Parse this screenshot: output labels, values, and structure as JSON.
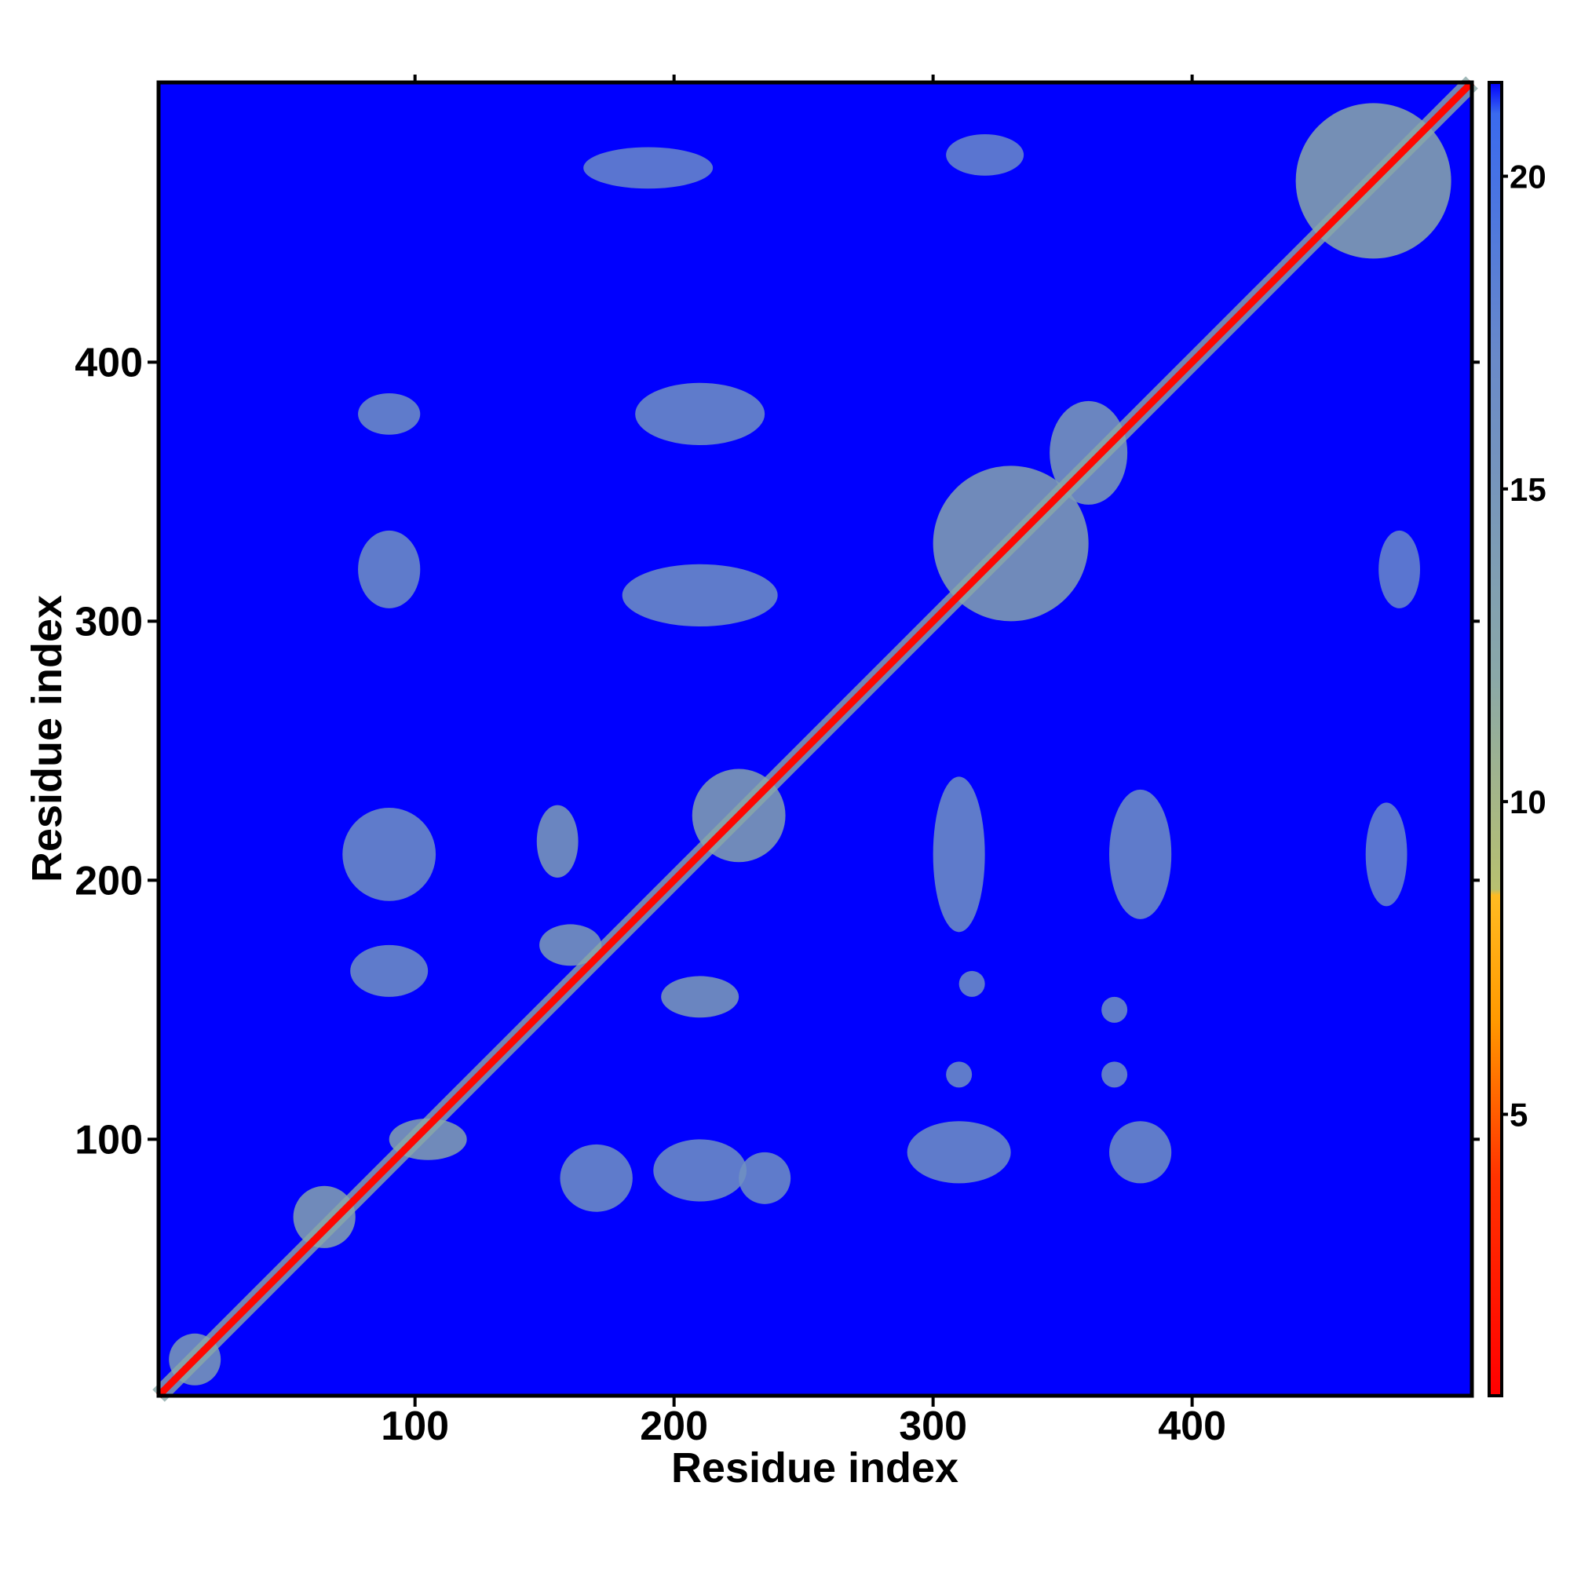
{
  "chart_data": {
    "type": "heatmap",
    "title": "",
    "xlabel": "Residue index",
    "ylabel": "Residue index",
    "xlim": [
      1,
      508
    ],
    "ylim": [
      1,
      508
    ],
    "x_ticks": [
      100,
      200,
      300,
      400
    ],
    "y_ticks": [
      100,
      200,
      300,
      400
    ],
    "colorbar": {
      "ticks": [
        5,
        10,
        15,
        20
      ],
      "range": [
        0.5,
        21.5
      ],
      "stops": [
        {
          "value": 0.5,
          "color": "#ff0000"
        },
        {
          "value": 4.0,
          "color": "#ff3300"
        },
        {
          "value": 6.5,
          "color": "#ff9900"
        },
        {
          "value": 8.5,
          "color": "#ffbb22"
        },
        {
          "value": 8.6,
          "color": "#b8c070"
        },
        {
          "value": 12.0,
          "color": "#8aa8a8"
        },
        {
          "value": 17.0,
          "color": "#6a8ac8"
        },
        {
          "value": 21.0,
          "color": "#3a6aee"
        },
        {
          "value": 21.5,
          "color": "#0000ff"
        }
      ]
    },
    "background_value": 21.5,
    "background_color": "#0000ff",
    "diagonal_value": 1.0,
    "contact_clusters": [
      {
        "x": 15,
        "y": 15,
        "rx": 10,
        "ry": 10,
        "value": 14
      },
      {
        "x": 65,
        "y": 70,
        "rx": 12,
        "ry": 12,
        "value": 13
      },
      {
        "x": 105,
        "y": 100,
        "rx": 15,
        "ry": 8,
        "value": 13
      },
      {
        "x": 170,
        "y": 85,
        "rx": 14,
        "ry": 13,
        "value": 16
      },
      {
        "x": 210,
        "y": 88,
        "rx": 18,
        "ry": 12,
        "value": 16
      },
      {
        "x": 235,
        "y": 85,
        "rx": 10,
        "ry": 10,
        "value": 16
      },
      {
        "x": 90,
        "y": 165,
        "rx": 15,
        "ry": 10,
        "value": 16
      },
      {
        "x": 90,
        "y": 210,
        "rx": 18,
        "ry": 18,
        "value": 16
      },
      {
        "x": 155,
        "y": 215,
        "rx": 8,
        "ry": 14,
        "value": 14
      },
      {
        "x": 210,
        "y": 155,
        "rx": 15,
        "ry": 8,
        "value": 14
      },
      {
        "x": 160,
        "y": 175,
        "rx": 12,
        "ry": 8,
        "value": 14
      },
      {
        "x": 225,
        "y": 225,
        "rx": 18,
        "ry": 18,
        "value": 13
      },
      {
        "x": 90,
        "y": 320,
        "rx": 12,
        "ry": 15,
        "value": 16
      },
      {
        "x": 90,
        "y": 380,
        "rx": 12,
        "ry": 8,
        "value": 16
      },
      {
        "x": 210,
        "y": 310,
        "rx": 30,
        "ry": 12,
        "value": 16
      },
      {
        "x": 210,
        "y": 380,
        "rx": 25,
        "ry": 12,
        "value": 16
      },
      {
        "x": 310,
        "y": 210,
        "rx": 10,
        "ry": 30,
        "value": 16
      },
      {
        "x": 380,
        "y": 210,
        "rx": 12,
        "ry": 25,
        "value": 16
      },
      {
        "x": 310,
        "y": 95,
        "rx": 20,
        "ry": 12,
        "value": 16
      },
      {
        "x": 380,
        "y": 95,
        "rx": 12,
        "ry": 12,
        "value": 16
      },
      {
        "x": 310,
        "y": 125,
        "rx": 5,
        "ry": 5,
        "value": 16
      },
      {
        "x": 370,
        "y": 125,
        "rx": 5,
        "ry": 5,
        "value": 16
      },
      {
        "x": 315,
        "y": 160,
        "rx": 5,
        "ry": 5,
        "value": 16
      },
      {
        "x": 370,
        "y": 150,
        "rx": 5,
        "ry": 5,
        "value": 16
      },
      {
        "x": 330,
        "y": 330,
        "rx": 30,
        "ry": 30,
        "value": 13
      },
      {
        "x": 360,
        "y": 365,
        "rx": 15,
        "ry": 20,
        "value": 14
      },
      {
        "x": 470,
        "y": 470,
        "rx": 30,
        "ry": 30,
        "value": 12
      },
      {
        "x": 475,
        "y": 210,
        "rx": 8,
        "ry": 20,
        "value": 17
      },
      {
        "x": 190,
        "y": 475,
        "rx": 25,
        "ry": 8,
        "value": 17
      },
      {
        "x": 480,
        "y": 320,
        "rx": 8,
        "ry": 15,
        "value": 17
      },
      {
        "x": 320,
        "y": 480,
        "rx": 15,
        "ry": 8,
        "value": 17
      }
    ]
  }
}
